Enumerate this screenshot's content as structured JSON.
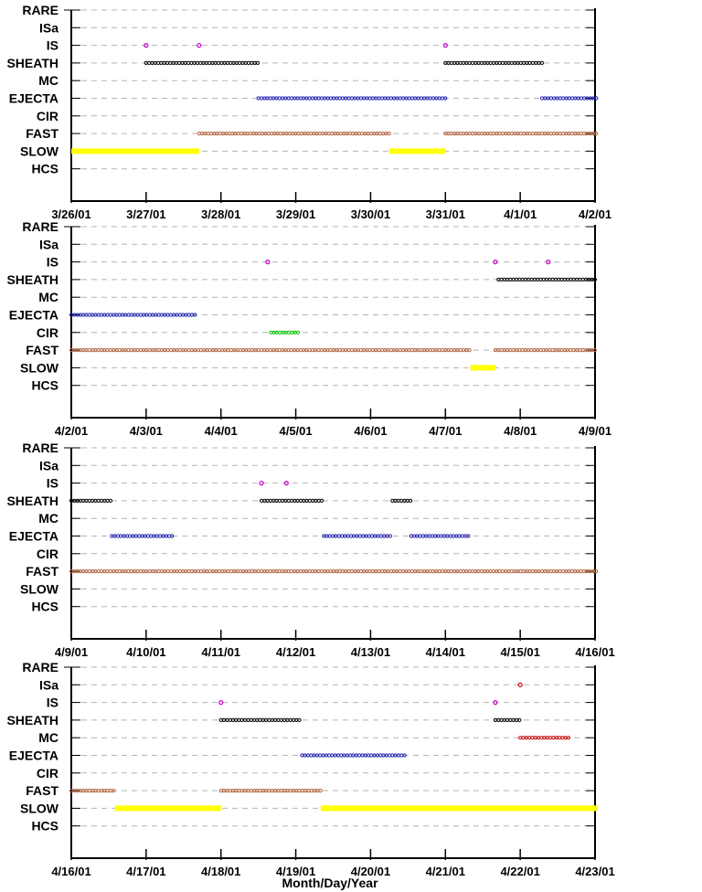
{
  "chart_data": {
    "type": "scatter",
    "xlabel": "Month/Day/Year",
    "categories": [
      "RARE",
      "ISa",
      "IS",
      "SHEATH",
      "MC",
      "EJECTA",
      "CIR",
      "FAST",
      "SLOW",
      "HCS"
    ],
    "colors": {
      "IS": "#cc00cc",
      "ISa": "#cc0000",
      "SHEATH": "#000000",
      "EJECTA": "#1f1fb4",
      "FAST": "#b4643c",
      "SLOW": "#ffff00",
      "CIR": "#00cc00",
      "MC": "#cc0000"
    },
    "grid": "horizontal dashed",
    "panels": [
      {
        "xticks": [
          "3/26/01",
          "3/27/01",
          "3/28/01",
          "3/29/01",
          "3/30/01",
          "3/31/01",
          "4/1/01",
          "4/2/01"
        ],
        "xlim": [
          "2001-03-26",
          "2001-04-02"
        ],
        "series": [
          {
            "category": "SLOW",
            "kind": "band",
            "segments": [
              [
                "2001-03-26T00:00",
                "2001-03-27T17:00"
              ],
              [
                "2001-03-30T06:00",
                "2001-03-31T00:00"
              ]
            ]
          },
          {
            "category": "FAST",
            "kind": "dots",
            "segments": [
              [
                "2001-03-27T17:00",
                "2001-03-30T06:00"
              ],
              [
                "2001-03-31T00:00",
                "2001-04-02T04:00"
              ]
            ]
          },
          {
            "category": "EJECTA",
            "kind": "dots",
            "segments": [
              [
                "2001-03-28T12:00",
                "2001-03-31T00:00"
              ],
              [
                "2001-04-01T07:00",
                "2001-04-02T04:00"
              ]
            ]
          },
          {
            "category": "SHEATH",
            "kind": "dots",
            "segments": [
              [
                "2001-03-27T00:00",
                "2001-03-28T12:00"
              ],
              [
                "2001-03-31T00:00",
                "2001-04-01T07:00"
              ]
            ]
          },
          {
            "category": "IS",
            "kind": "points",
            "x": [
              "2001-03-27T00:00",
              "2001-03-27T17:00",
              "2001-03-31T00:00"
            ]
          }
        ]
      },
      {
        "xticks": [
          "4/2/01",
          "4/3/01",
          "4/4/01",
          "4/5/01",
          "4/6/01",
          "4/7/01",
          "4/8/01",
          "4/9/01"
        ],
        "xlim": [
          "2001-04-02",
          "2001-04-09"
        ],
        "series": [
          {
            "category": "FAST",
            "kind": "dots",
            "segments": [
              [
                "2001-04-02T00:00",
                "2001-04-07T08:00"
              ],
              [
                "2001-04-07T16:00",
                "2001-04-09T04:00"
              ]
            ]
          },
          {
            "category": "SLOW",
            "kind": "band",
            "segments": [
              [
                "2001-04-07T08:00",
                "2001-04-07T16:00"
              ]
            ]
          },
          {
            "category": "EJECTA",
            "kind": "dots",
            "segments": [
              [
                "2001-04-02T00:00",
                "2001-04-03T16:00"
              ]
            ]
          },
          {
            "category": "CIR",
            "kind": "dots",
            "segments": [
              [
                "2001-04-04T16:00",
                "2001-04-05T01:00"
              ]
            ]
          },
          {
            "category": "SHEATH",
            "kind": "dots",
            "segments": [
              [
                "2001-04-07T17:00",
                "2001-04-09T04:00"
              ]
            ]
          },
          {
            "category": "IS",
            "kind": "points",
            "x": [
              "2001-04-04T15:00",
              "2001-04-07T16:00",
              "2001-04-08T09:00"
            ]
          }
        ]
      },
      {
        "xticks": [
          "4/9/01",
          "4/10/01",
          "4/11/01",
          "4/12/01",
          "4/13/01",
          "4/14/01",
          "4/15/01",
          "4/16/01"
        ],
        "xlim": [
          "2001-04-09",
          "2001-04-16"
        ],
        "series": [
          {
            "category": "FAST",
            "kind": "dots",
            "segments": [
              [
                "2001-04-09T00:00",
                "2001-04-16T04:00"
              ]
            ]
          },
          {
            "category": "SHEATH",
            "kind": "dots",
            "segments": [
              [
                "2001-04-09T00:00",
                "2001-04-09T13:00"
              ],
              [
                "2001-04-11T13:00",
                "2001-04-12T09:00"
              ],
              [
                "2001-04-13T07:00",
                "2001-04-13T13:00"
              ]
            ]
          },
          {
            "category": "EJECTA",
            "kind": "dots",
            "segments": [
              [
                "2001-04-09T13:00",
                "2001-04-10T09:00"
              ],
              [
                "2001-04-12T09:00",
                "2001-04-13T07:00"
              ],
              [
                "2001-04-13T13:00",
                "2001-04-14T08:00"
              ]
            ]
          },
          {
            "category": "IS",
            "kind": "points",
            "x": [
              "2001-04-11T13:00",
              "2001-04-11T21:00"
            ]
          }
        ]
      },
      {
        "xticks": [
          "4/16/01",
          "4/17/01",
          "4/18/01",
          "4/19/01",
          "4/20/01",
          "4/21/01",
          "4/22/01",
          "4/23/01"
        ],
        "xlim": [
          "2001-04-16",
          "2001-04-23"
        ],
        "series": [
          {
            "category": "FAST",
            "kind": "dots",
            "segments": [
              [
                "2001-04-16T00:00",
                "2001-04-16T14:00"
              ],
              [
                "2001-04-18T00:00",
                "2001-04-19T08:00"
              ]
            ]
          },
          {
            "category": "SLOW",
            "kind": "band",
            "segments": [
              [
                "2001-04-16T14:00",
                "2001-04-18T00:00"
              ],
              [
                "2001-04-19T08:00",
                "2001-04-23T04:00"
              ]
            ]
          },
          {
            "category": "SHEATH",
            "kind": "dots",
            "segments": [
              [
                "2001-04-18T00:00",
                "2001-04-19T02:00"
              ],
              [
                "2001-04-21T16:00",
                "2001-04-22T00:00"
              ]
            ]
          },
          {
            "category": "EJECTA",
            "kind": "dots",
            "segments": [
              [
                "2001-04-19T02:00",
                "2001-04-20T11:00"
              ]
            ]
          },
          {
            "category": "MC",
            "kind": "dots",
            "segments": [
              [
                "2001-04-22T00:00",
                "2001-04-22T16:00"
              ]
            ]
          },
          {
            "category": "IS",
            "kind": "points",
            "x": [
              "2001-04-18T00:00",
              "2001-04-21T16:00"
            ]
          },
          {
            "category": "ISa",
            "kind": "points",
            "x": [
              "2001-04-22T00:00"
            ]
          }
        ]
      }
    ]
  }
}
